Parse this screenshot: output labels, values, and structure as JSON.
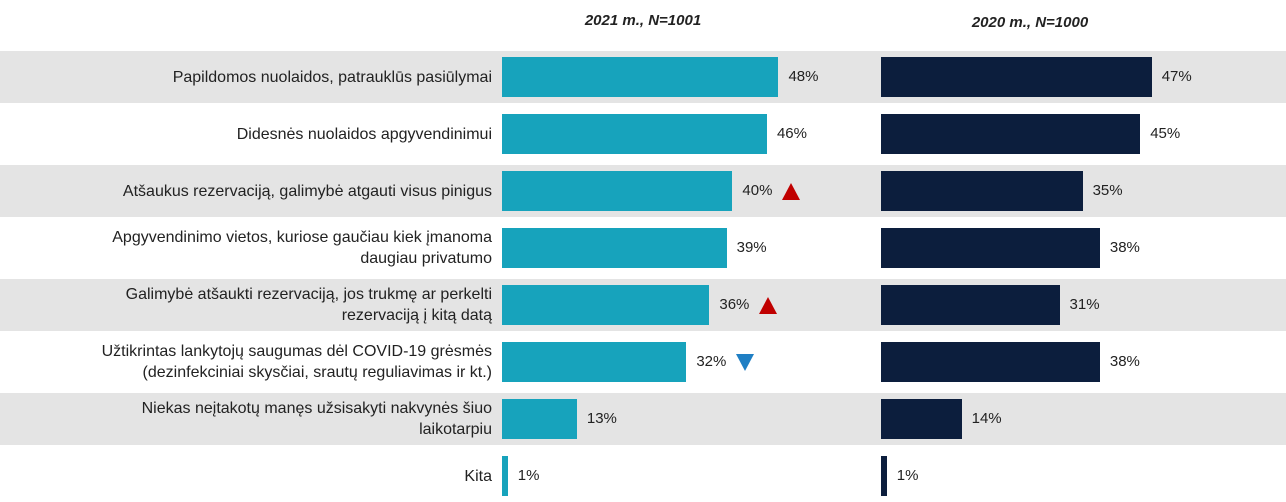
{
  "chart_data": {
    "type": "bar",
    "orientation": "horizontal",
    "categories": [
      "Papildomos nuolaidos, patrauklūs pasiūlymai",
      "Didesnės nuolaidos apgyvendinimui",
      "Atšaukus rezervaciją, galimybė atgauti visus pinigus",
      "Apgyvendinimo vietos, kuriose gaučiau kiek įmanoma\ndaugiau privatumo",
      "Galimybė atšaukti rezervaciją, jos trukmę ar perkelti\nrezervaciją į kitą datą",
      "Užtikrintas lankytojų saugumas dėl COVID-19 grėsmės\n(dezinfekciniai skysčiai, srautų reguliavimas ir kt.)",
      "Niekas neįtakotų manęs užsisakyti nakvynės šiuo\nlaikotarpiu",
      "Kita"
    ],
    "series": [
      {
        "name": "2021 m., N=1001",
        "color": "#17a3bc",
        "values": [
          48,
          46,
          40,
          39,
          36,
          32,
          13,
          1
        ],
        "value_labels": [
          "48%",
          "46%",
          "40%",
          "39%",
          "36%",
          "32%",
          "13%",
          "1%"
        ],
        "markers": [
          null,
          null,
          "up",
          null,
          "up",
          "down",
          null,
          null
        ]
      },
      {
        "name": "2020 m., N=1000",
        "color": "#0c1e3d",
        "values": [
          47,
          45,
          35,
          38,
          31,
          38,
          14,
          1
        ],
        "value_labels": [
          "47%",
          "45%",
          "35%",
          "38%",
          "31%",
          "38%",
          "14%",
          "1%"
        ]
      }
    ],
    "marker_colors": {
      "up": "#c00000",
      "down": "#1f7fc4"
    }
  }
}
